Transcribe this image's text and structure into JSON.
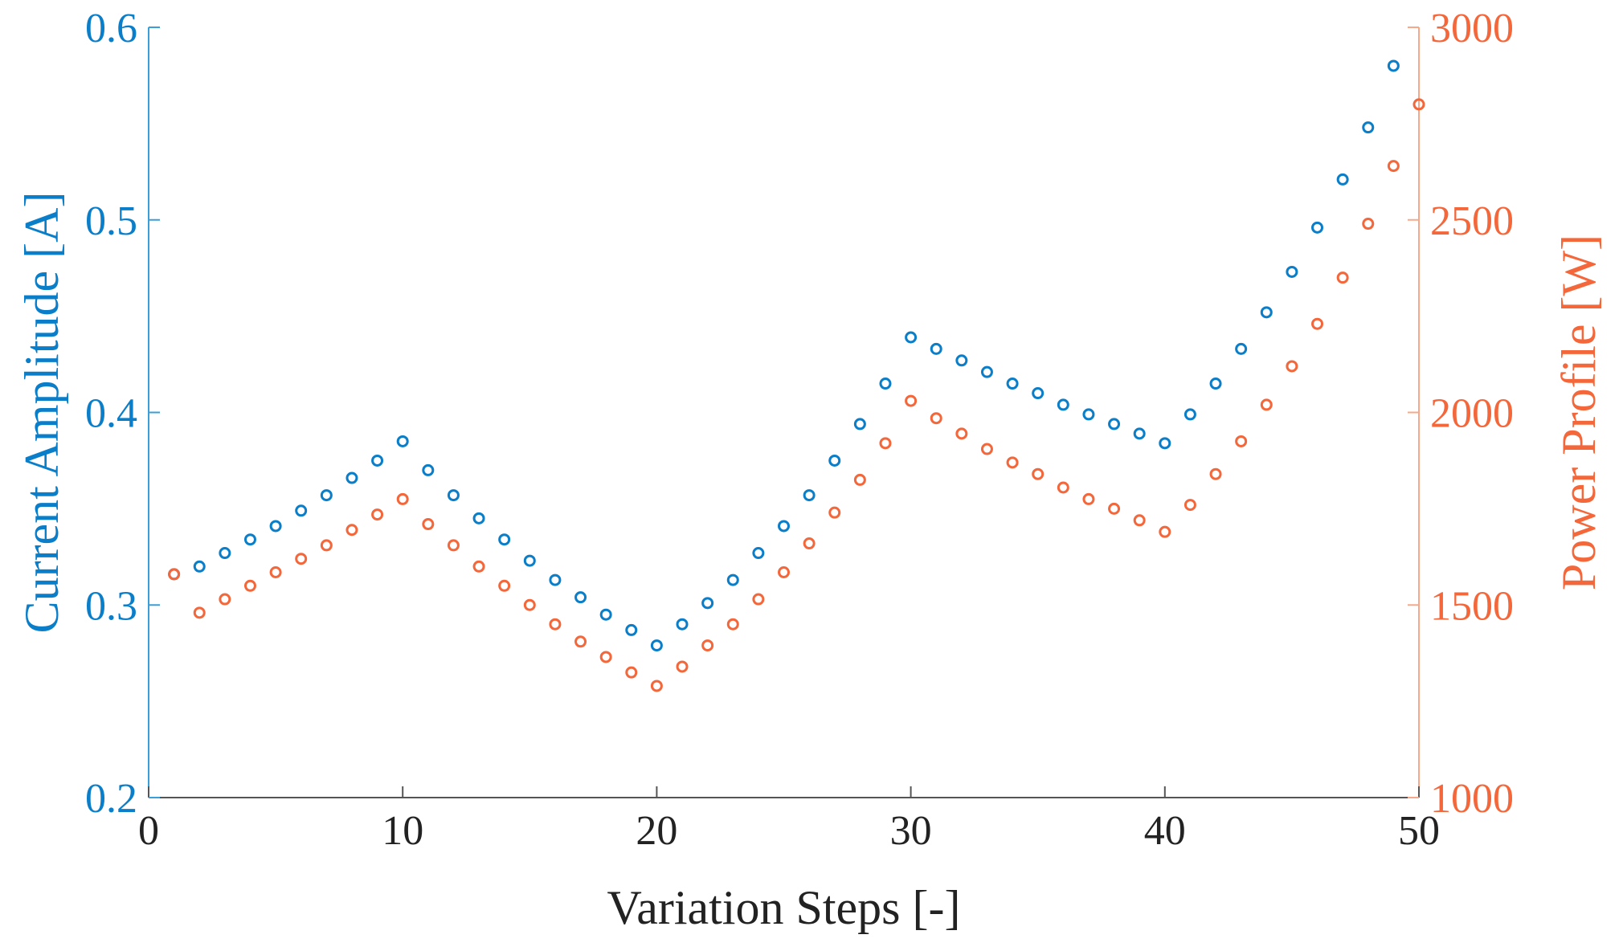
{
  "chart_data": {
    "type": "scatter",
    "title": "",
    "xlabel": "Variation Steps [-]",
    "ylabel_left": "Current Amplitude [A]",
    "ylabel_right": "Power Profile [W]",
    "xlim": [
      0,
      50
    ],
    "ylim_left": [
      0.2,
      0.6
    ],
    "ylim_right": [
      1000,
      3000
    ],
    "x_ticks": [
      0,
      10,
      20,
      30,
      40,
      50
    ],
    "y_ticks_left": [
      0.2,
      0.3,
      0.4,
      0.5,
      0.6
    ],
    "y_ticks_right": [
      1000,
      1500,
      2000,
      2500,
      3000
    ],
    "colors": {
      "left": "#0b7ec9",
      "right": "#f4673a",
      "axis_left": "#3a9fd9",
      "axis_right": "#f7a88a",
      "axis_bottom": "#555555"
    },
    "series": [
      {
        "name": "Current Amplitude",
        "axis": "left",
        "x": [
          1,
          2,
          3,
          4,
          5,
          6,
          7,
          8,
          9,
          10,
          11,
          12,
          13,
          14,
          15,
          16,
          17,
          18,
          19,
          20,
          21,
          22,
          23,
          24,
          25,
          26,
          27,
          28,
          29,
          30,
          31,
          32,
          33,
          34,
          35,
          36,
          37,
          38,
          39,
          40,
          41,
          42,
          43,
          44,
          45,
          46,
          47,
          48,
          49
        ],
        "values": [
          0.316,
          0.32,
          0.327,
          0.334,
          0.341,
          0.349,
          0.357,
          0.366,
          0.375,
          0.385,
          0.37,
          0.357,
          0.345,
          0.334,
          0.323,
          0.313,
          0.304,
          0.295,
          0.287,
          0.279,
          0.29,
          0.301,
          0.313,
          0.327,
          0.341,
          0.357,
          0.375,
          0.394,
          0.415,
          0.439,
          0.433,
          0.427,
          0.421,
          0.415,
          0.41,
          0.404,
          0.399,
          0.394,
          0.389,
          0.384,
          0.399,
          0.415,
          0.433,
          0.452,
          0.473,
          0.496,
          0.521,
          0.548,
          0.58
        ]
      },
      {
        "name": "Power Profile",
        "axis": "right",
        "x": [
          1,
          2,
          3,
          4,
          5,
          6,
          7,
          8,
          9,
          10,
          11,
          12,
          13,
          14,
          15,
          16,
          17,
          18,
          19,
          20,
          21,
          22,
          23,
          24,
          25,
          26,
          27,
          28,
          29,
          30,
          31,
          32,
          33,
          34,
          35,
          36,
          37,
          38,
          39,
          40,
          41,
          42,
          43,
          44,
          45,
          46,
          47,
          48,
          49,
          50
        ],
        "values": [
          1580,
          1480,
          1515,
          1550,
          1585,
          1620,
          1655,
          1695,
          1735,
          1775,
          1710,
          1655,
          1600,
          1550,
          1500,
          1450,
          1405,
          1365,
          1325,
          1290,
          1340,
          1395,
          1450,
          1515,
          1585,
          1660,
          1740,
          1825,
          1920,
          2030,
          1985,
          1945,
          1905,
          1870,
          1840,
          1805,
          1775,
          1750,
          1720,
          1690,
          1760,
          1840,
          1925,
          2020,
          2120,
          2230,
          2350,
          2490,
          2640,
          2800
        ]
      }
    ]
  }
}
